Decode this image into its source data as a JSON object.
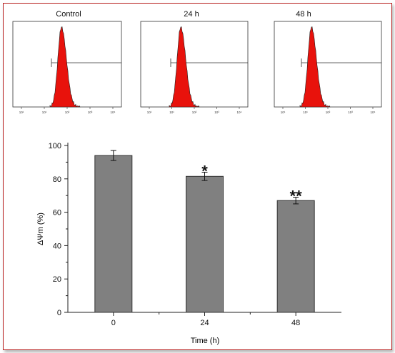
{
  "histograms": [
    {
      "title": "Control",
      "shift": 0
    },
    {
      "title": "24 h",
      "shift": 0
    },
    {
      "title": "48 h",
      "shift": 0
    }
  ],
  "hist_tick_labels": [
    "10¹",
    "10¹",
    "10²",
    "10³",
    "10⁴"
  ],
  "colors": {
    "frame": "#b8201f",
    "peak": "#e8120c",
    "bar": "#808080"
  },
  "chart_data": {
    "type": "bar",
    "categories": [
      "0",
      "24",
      "48"
    ],
    "values": [
      94,
      81.5,
      67
    ],
    "errors": [
      3,
      2.5,
      2
    ],
    "annotations": [
      "",
      "*",
      "**"
    ],
    "xlabel": "Time (h)",
    "ylabel": "ΔΨm (%)",
    "ylim": [
      0,
      100
    ],
    "yticks": [
      0,
      20,
      40,
      60,
      80,
      100
    ]
  }
}
